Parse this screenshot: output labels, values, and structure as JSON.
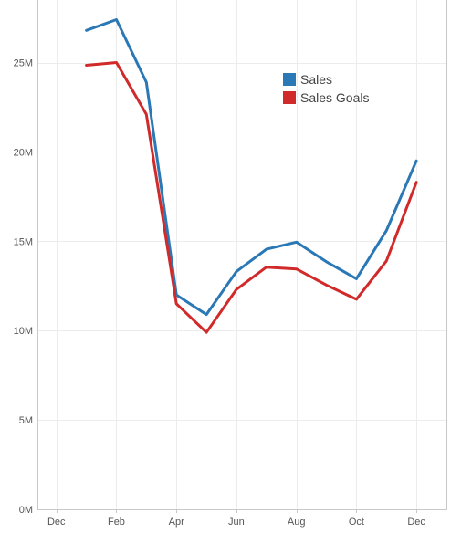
{
  "chart_data": {
    "type": "line",
    "title": "",
    "xlabel": "",
    "ylabel": "",
    "x_ticks": [
      "Dec",
      "Feb",
      "Apr",
      "Jun",
      "Aug",
      "Oct",
      "Dec"
    ],
    "x_tick_positions": [
      0,
      2,
      4,
      6,
      8,
      10,
      12
    ],
    "x": [
      1,
      2,
      3,
      4,
      5,
      6,
      7,
      8,
      9,
      10,
      11,
      12
    ],
    "y_ticks": [
      {
        "value": 0,
        "label": "0M"
      },
      {
        "value": 5,
        "label": "5M"
      },
      {
        "value": 10,
        "label": "10M"
      },
      {
        "value": 15,
        "label": "15M"
      },
      {
        "value": 20,
        "label": "20M"
      },
      {
        "value": 25,
        "label": "25M"
      }
    ],
    "ylim": [
      0,
      28.5
    ],
    "xlim": [
      -0.6,
      13
    ],
    "grid": true,
    "legend_position": "top-right",
    "series": [
      {
        "name": "Sales",
        "color": "#2a78b5",
        "values": [
          26.8,
          27.4,
          23.9,
          12.0,
          10.9,
          13.3,
          14.55,
          14.95,
          13.85,
          12.9,
          15.6,
          19.5
        ]
      },
      {
        "name": "Sales Goals",
        "color": "#d12a2a",
        "values": [
          24.85,
          25.0,
          22.1,
          11.5,
          9.9,
          12.3,
          13.55,
          13.45,
          12.55,
          11.75,
          13.9,
          18.3
        ]
      }
    ]
  }
}
